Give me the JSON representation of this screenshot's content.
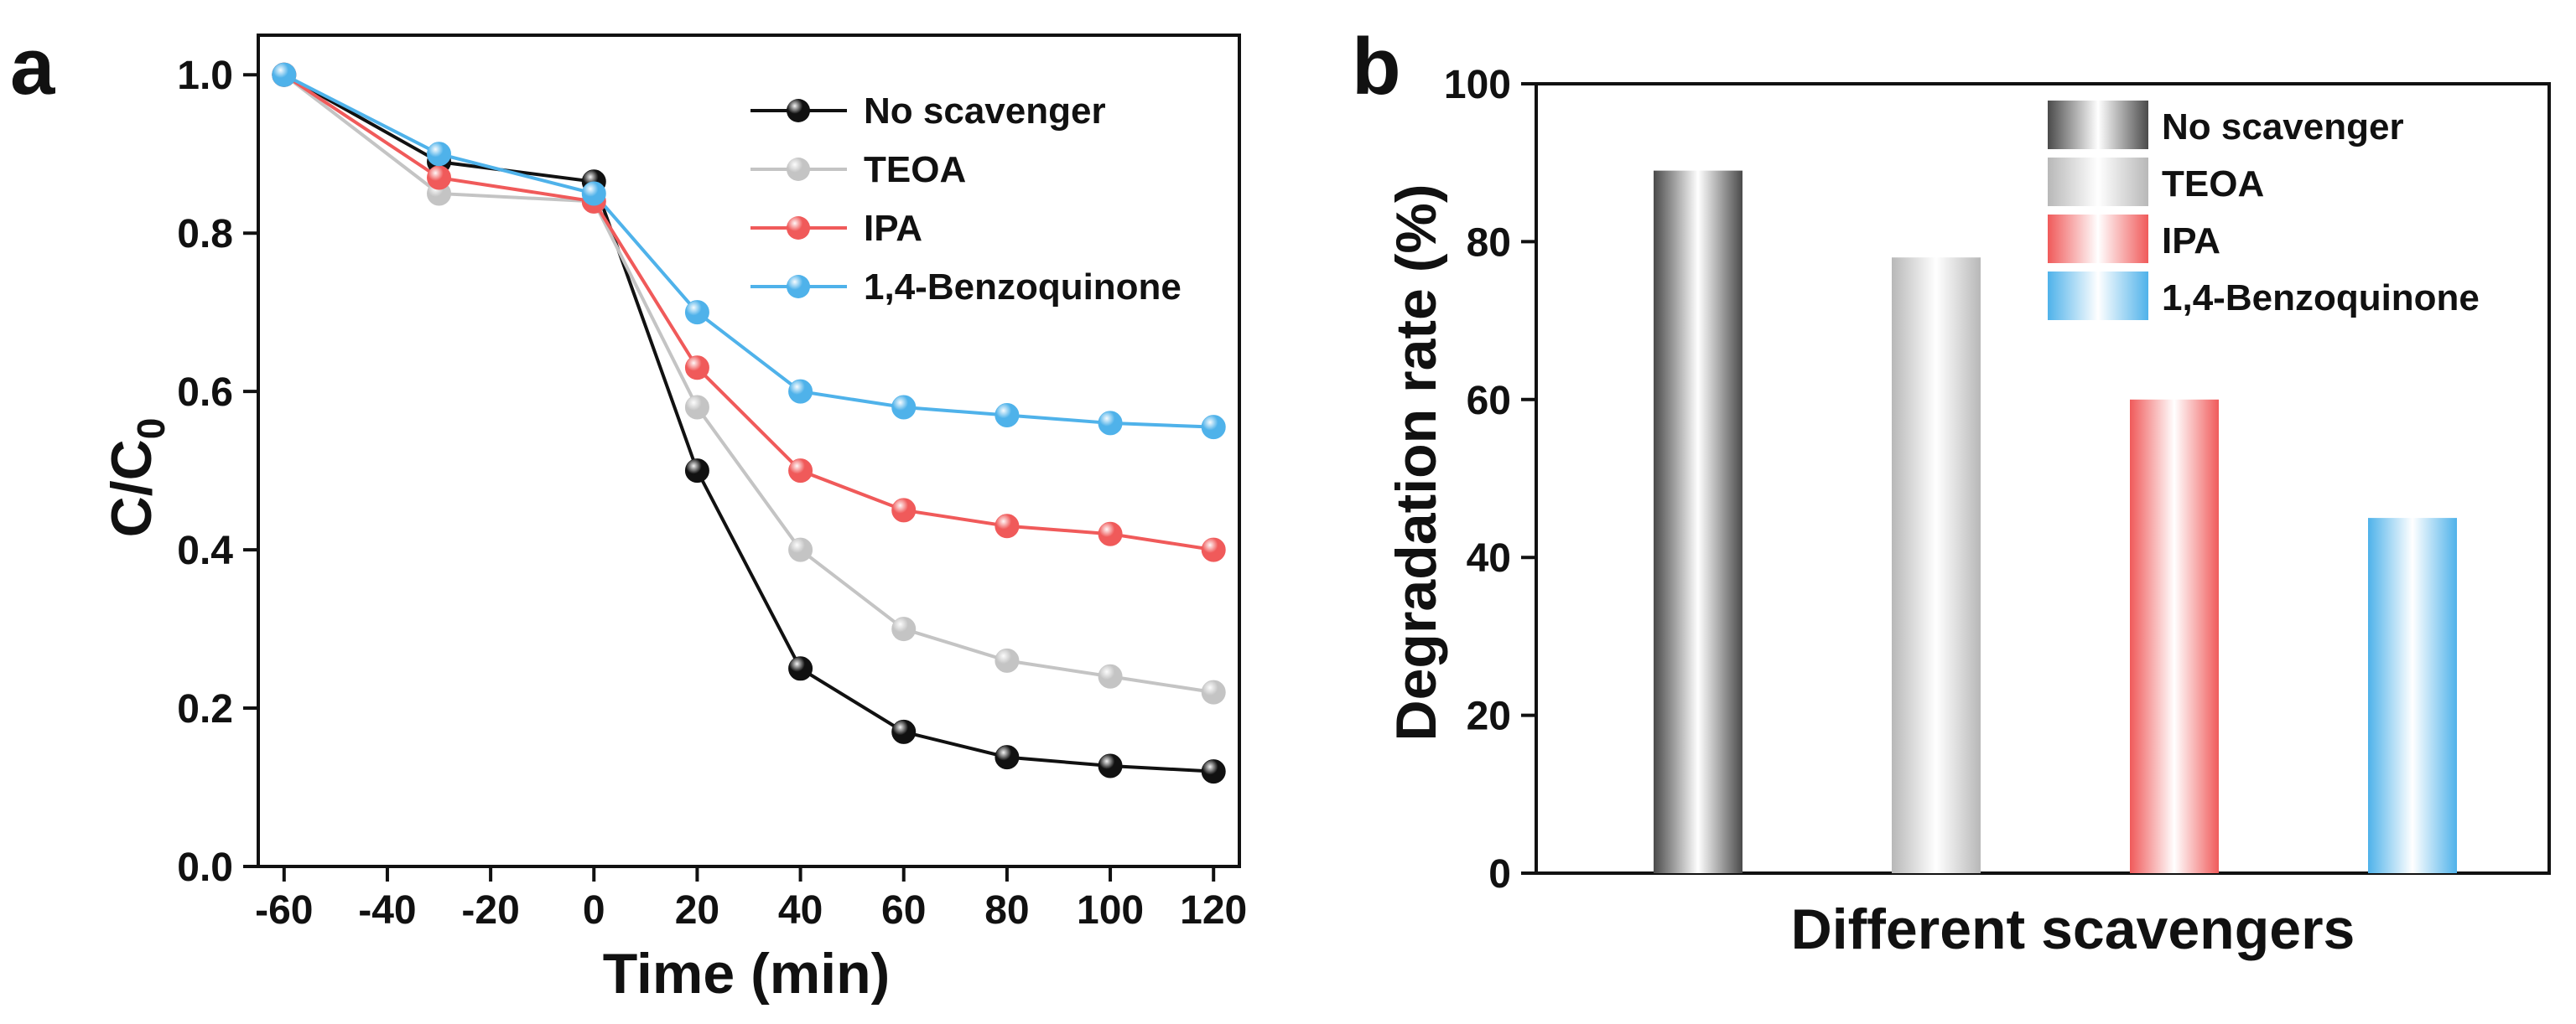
{
  "panels": {
    "a": "a",
    "b": "b"
  },
  "chart_data": [
    {
      "panel": "a",
      "type": "line",
      "title": "",
      "xlabel": "Time (min)",
      "ylabel_main": "C/C",
      "ylabel_sub": "0",
      "xlim": [
        -65,
        125
      ],
      "ylim": [
        0.0,
        1.05
      ],
      "grid": false,
      "legend_position": "top-right",
      "x_ticks": [
        -60,
        -40,
        -20,
        0,
        20,
        40,
        60,
        80,
        100,
        120
      ],
      "y_ticks": [
        0.0,
        0.2,
        0.4,
        0.6,
        0.8,
        1.0
      ],
      "x_tick_labels": [
        "-60",
        "-40",
        "-20",
        "0",
        "20",
        "40",
        "60",
        "80",
        "100",
        "120"
      ],
      "y_tick_labels": [
        "0.0",
        "0.2",
        "0.4",
        "0.6",
        "0.8",
        "1.0"
      ],
      "x": [
        -60,
        -30,
        0,
        20,
        40,
        60,
        80,
        100,
        120
      ],
      "series": [
        {
          "name": "No scavenger",
          "color": "#111111",
          "values": [
            1.0,
            0.89,
            0.865,
            0.5,
            0.25,
            0.17,
            0.138,
            0.127,
            0.12
          ]
        },
        {
          "name": "TEOA",
          "color": "#c4c4c4",
          "values": [
            1.0,
            0.85,
            0.84,
            0.58,
            0.4,
            0.3,
            0.26,
            0.24,
            0.22
          ]
        },
        {
          "name": "IPA",
          "color": "#f05a5a",
          "values": [
            1.0,
            0.87,
            0.84,
            0.63,
            0.5,
            0.45,
            0.43,
            0.42,
            0.4
          ]
        },
        {
          "name": "1,4-Benzoquinone",
          "color": "#4fb2ea",
          "values": [
            1.0,
            0.9,
            0.85,
            0.7,
            0.6,
            0.58,
            0.57,
            0.56,
            0.555
          ]
        }
      ]
    },
    {
      "panel": "b",
      "type": "bar",
      "title": "",
      "xlabel": "Different scavengers",
      "ylabel": "Degradation rate (%)",
      "ylim": [
        0,
        100
      ],
      "grid": false,
      "legend_position": "top-right",
      "y_ticks": [
        0,
        20,
        40,
        60,
        80,
        100
      ],
      "y_tick_labels": [
        "0",
        "20",
        "40",
        "60",
        "80",
        "100"
      ],
      "categories": [
        "No scavenger",
        "TEOA",
        "IPA",
        "1,4-Benzoquinone"
      ],
      "values": [
        89,
        78,
        60,
        45
      ],
      "colors": [
        "#4a4a4a",
        "#b8b8b8",
        "#f05a5a",
        "#4fb2ea"
      ]
    }
  ]
}
